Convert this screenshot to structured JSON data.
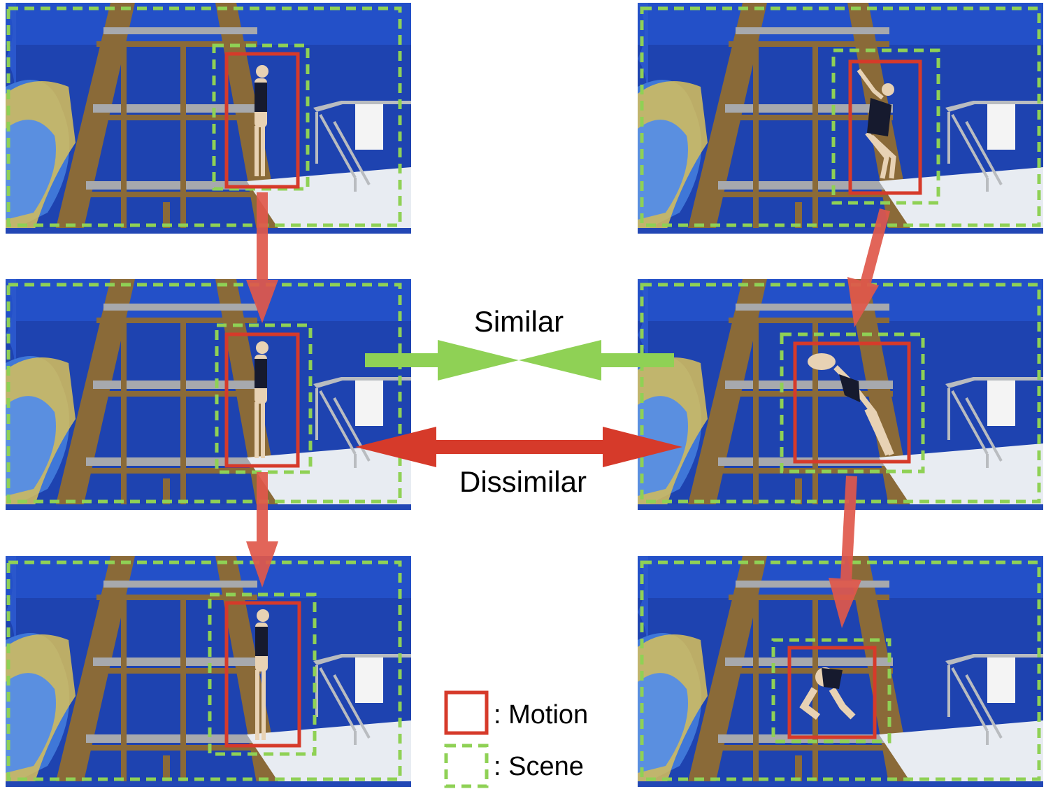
{
  "labels": {
    "similar": "Similar",
    "dissimilar": "Dissimilar"
  },
  "legend": {
    "motion": ": Motion",
    "scene": ": Scene"
  },
  "colors": {
    "motion_box": "#d63a2a",
    "scene_box": "#8fd155",
    "similar_arrow": "#8fd155",
    "dissimilar_arrow": "#d63a2a",
    "frame_arrow": "#e0584b",
    "backdrop": "#1e43b0",
    "wood": "#8a6a38"
  },
  "frames": {
    "left_column": [
      "diver-standing-frame-1",
      "diver-standing-frame-2",
      "diver-standing-frame-3"
    ],
    "right_column": [
      "diver-takeoff-frame-1",
      "diver-takeoff-frame-2",
      "diver-takeoff-frame-3"
    ]
  }
}
